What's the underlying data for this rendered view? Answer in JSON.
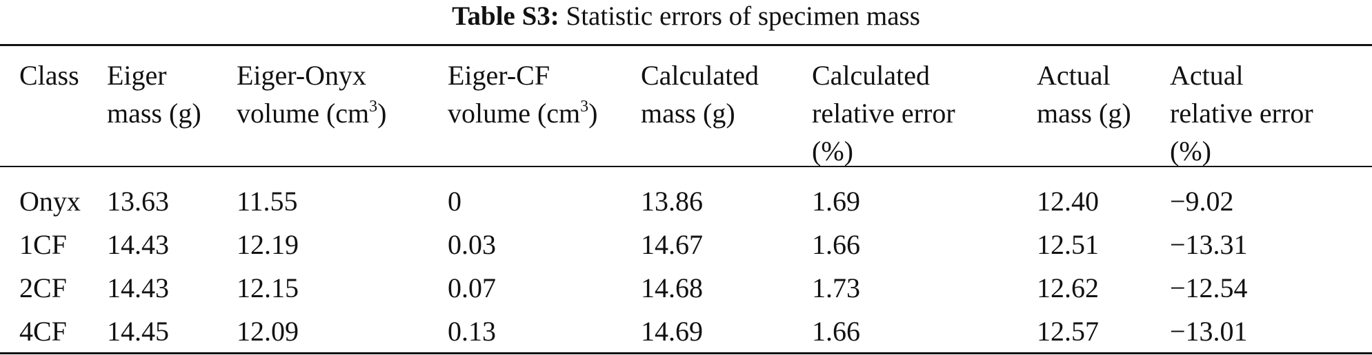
{
  "caption": {
    "label": "Table S3:",
    "text": "Statistic errors of specimen mass"
  },
  "table": {
    "header": [
      {
        "lines": [
          "Class"
        ]
      },
      {
        "lines": [
          "Eiger",
          "mass (g)"
        ]
      },
      {
        "lines": [
          "Eiger-Onyx",
          "volume (cm",
          ")"
        ],
        "sup": "3"
      },
      {
        "lines": [
          "Eiger-CF",
          "volume (cm",
          ")"
        ],
        "sup": "3"
      },
      {
        "lines": [
          "Calculated",
          "mass (g)"
        ]
      },
      {
        "lines": [
          "Calculated",
          "relative error",
          "(%)"
        ]
      },
      {
        "lines": [
          "Actual",
          "mass (g)"
        ]
      },
      {
        "lines": [
          "Actual",
          "relative error",
          "(%)"
        ]
      }
    ],
    "rows": [
      [
        "Onyx",
        "13.63",
        "11.55",
        "0",
        "13.86",
        "1.69",
        "12.40",
        "−9.02"
      ],
      [
        "1CF",
        "14.43",
        "12.19",
        "0.03",
        "14.67",
        "1.66",
        "12.51",
        "−13.31"
      ],
      [
        "2CF",
        "14.43",
        "12.15",
        "0.07",
        "14.68",
        "1.73",
        "12.62",
        "−12.54"
      ],
      [
        "4CF",
        "14.45",
        "12.09",
        "0.13",
        "14.69",
        "1.66",
        "12.57",
        "−13.01"
      ]
    ]
  }
}
